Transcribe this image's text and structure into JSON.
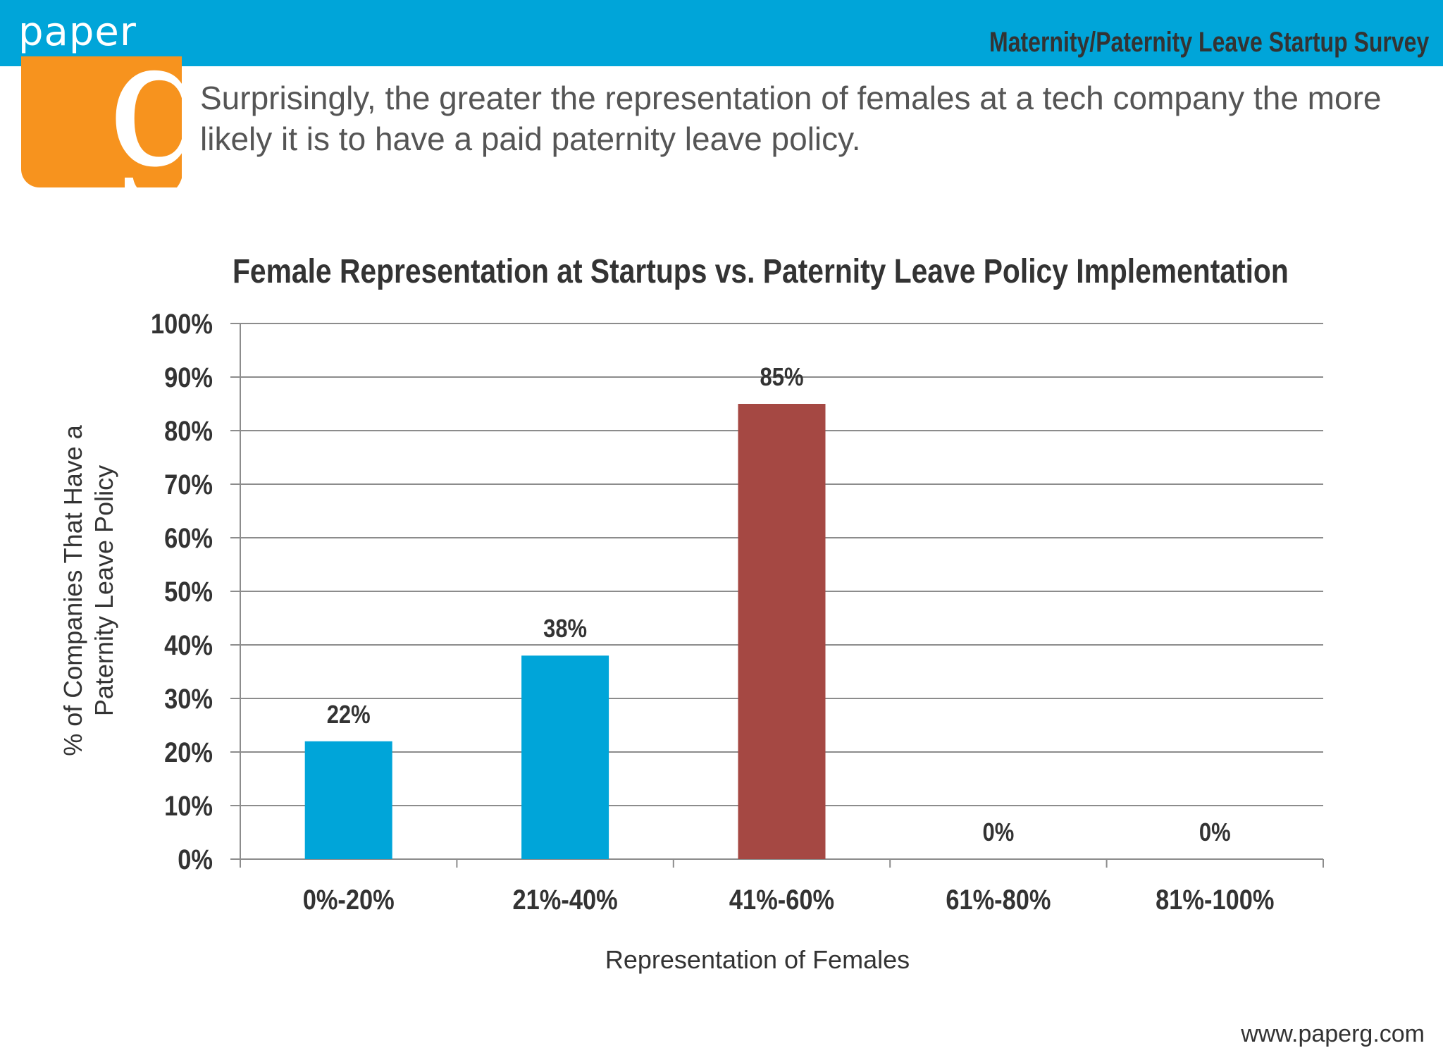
{
  "header": {
    "brand_word": "paper",
    "brand_letter": "g",
    "title": "Maternity/Paternity Leave Startup Survey",
    "headline": "Surprisingly, the greater the representation of females at a tech company the more likely it is to have a paid paternity leave policy."
  },
  "footer": {
    "url": "www.paperg.com"
  },
  "colors": {
    "header_bar": "#00a5d9",
    "brand_tile": "#f7931e",
    "bar_default": "#00a5d9",
    "bar_highlight": "#a54843",
    "gridline": "#8c8c8c",
    "text": "#333333"
  },
  "chart_data": {
    "type": "bar",
    "title": "Female Representation at Startups vs. Paternity Leave Policy Implementation",
    "xlabel": "Representation of Females",
    "ylabel": [
      "% of Companies That Have a",
      "Paternity Leave Policy"
    ],
    "categories": [
      "0%-20%",
      "21%-40%",
      "41%-60%",
      "61%-80%",
      "81%-100%"
    ],
    "values": [
      22,
      38,
      85,
      0,
      0
    ],
    "value_labels": [
      "22%",
      "38%",
      "85%",
      "0%",
      "0%"
    ],
    "highlight_index": 2,
    "ylim": [
      0,
      100
    ],
    "yticks": [
      0,
      10,
      20,
      30,
      40,
      50,
      60,
      70,
      80,
      90,
      100
    ],
    "ytick_labels": [
      "0%",
      "10%",
      "20%",
      "30%",
      "40%",
      "50%",
      "60%",
      "70%",
      "80%",
      "90%",
      "100%"
    ],
    "grid": true,
    "legend": "none"
  }
}
